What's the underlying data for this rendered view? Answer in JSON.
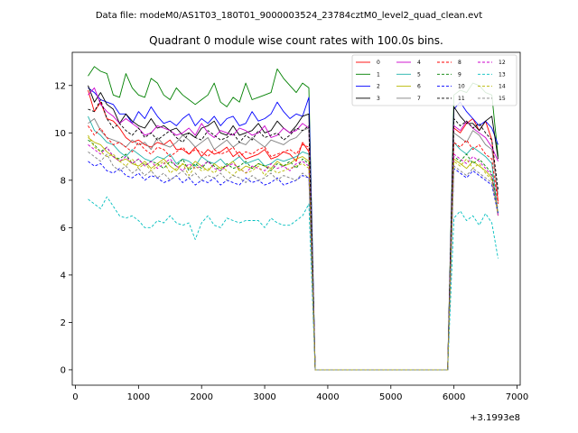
{
  "suptitle": "Data file: modeM0/AS1T03_180T01_9000003524_23784cztM0_level2_quad_clean.evt",
  "chart_data": {
    "type": "line",
    "title": "Quadrant 0 module wise count rates with 100.0s bins.",
    "xlabel": "",
    "ylabel": "",
    "x_offset_label": "+3.1993e8",
    "xlim": [
      -50,
      7050
    ],
    "ylim": [
      -0.65,
      13.4
    ],
    "x_ticks": [
      0,
      1000,
      2000,
      3000,
      4000,
      5000,
      6000,
      7000
    ],
    "y_ticks": [
      0,
      2,
      4,
      6,
      8,
      10,
      12
    ],
    "x": [
      200,
      300,
      400,
      500,
      600,
      700,
      800,
      900,
      1000,
      1100,
      1200,
      1300,
      1400,
      1500,
      1600,
      1700,
      1800,
      1900,
      2000,
      2100,
      2200,
      2300,
      2400,
      2500,
      2600,
      2700,
      2800,
      2900,
      3000,
      3100,
      3200,
      3300,
      3400,
      3500,
      3600,
      3700,
      3800,
      3900,
      4000,
      4100,
      4200,
      4300,
      4400,
      4500,
      4600,
      4700,
      4800,
      4900,
      5000,
      5100,
      5200,
      5300,
      5400,
      5500,
      5600,
      5700,
      5800,
      5900,
      6000,
      6100,
      6200,
      6300,
      6400,
      6500,
      6600,
      6700
    ],
    "legend_position": "upper right",
    "legend_columns": 4,
    "series": [
      {
        "name": "0",
        "color": "#ff0000",
        "dash": "solid",
        "values": [
          11.8,
          10.9,
          11.3,
          10.6,
          10.5,
          10.2,
          9.8,
          9.6,
          9.7,
          9.5,
          9.4,
          9.6,
          9.5,
          9.7,
          9.3,
          9.3,
          9.1,
          9.4,
          9.0,
          9.3,
          9.1,
          9.2,
          9.4,
          9.0,
          9.2,
          8.9,
          9.0,
          9.1,
          9.3,
          8.9,
          9.0,
          9.2,
          9.1,
          8.8,
          9.6,
          9.2,
          0,
          0,
          0,
          0,
          0,
          0,
          0,
          0,
          0,
          0,
          0,
          0,
          0,
          0,
          0,
          0,
          0,
          0,
          0,
          0,
          0,
          0,
          10.2,
          10.0,
          10.4,
          10.6,
          10.1,
          10.5,
          9.7,
          7.1
        ]
      },
      {
        "name": "1",
        "color": "#008000",
        "dash": "solid",
        "values": [
          12.4,
          12.8,
          12.6,
          12.5,
          11.6,
          11.5,
          12.5,
          11.9,
          11.6,
          11.5,
          12.3,
          12.1,
          11.6,
          11.4,
          11.9,
          11.6,
          11.4,
          11.2,
          11.4,
          11.6,
          12.1,
          11.3,
          11.1,
          11.5,
          11.3,
          12.1,
          11.4,
          11.5,
          11.6,
          11.7,
          12.7,
          12.3,
          12.0,
          11.7,
          12.1,
          11.9,
          0,
          0,
          0,
          0,
          0,
          0,
          0,
          0,
          0,
          0,
          0,
          0,
          0,
          0,
          0,
          0,
          0,
          0,
          0,
          0,
          0,
          0,
          11.6,
          11.8,
          11.7,
          12.1,
          12.0,
          11.7,
          11.6,
          9.0
        ]
      },
      {
        "name": "2",
        "color": "#0000ff",
        "dash": "solid",
        "values": [
          11.9,
          11.7,
          11.4,
          11.3,
          11.2,
          10.8,
          10.8,
          10.4,
          10.9,
          10.6,
          11.1,
          10.7,
          10.4,
          10.5,
          10.3,
          10.6,
          10.8,
          10.3,
          10.6,
          10.4,
          10.7,
          10.3,
          10.6,
          10.7,
          10.3,
          10.4,
          10.9,
          10.5,
          10.6,
          10.8,
          11.3,
          10.9,
          10.6,
          10.8,
          10.7,
          11.5,
          0,
          0,
          0,
          0,
          0,
          0,
          0,
          0,
          0,
          0,
          0,
          0,
          0,
          0,
          0,
          0,
          0,
          0,
          0,
          0,
          0,
          0,
          11.0,
          11.3,
          10.9,
          10.6,
          10.3,
          10.5,
          10.2,
          9.5
        ]
      },
      {
        "name": "3",
        "color": "#000000",
        "dash": "solid",
        "values": [
          12.0,
          11.3,
          11.7,
          11.2,
          11.0,
          10.4,
          10.8,
          10.5,
          10.3,
          10.2,
          10.6,
          10.2,
          10.3,
          10.1,
          10.2,
          9.9,
          10.0,
          9.8,
          10.2,
          10.3,
          10.5,
          10.0,
          9.9,
          10.3,
          9.9,
          10.0,
          10.1,
          10.4,
          10.0,
          10.1,
          10.5,
          10.2,
          10.0,
          10.3,
          10.7,
          10.8,
          0,
          0,
          0,
          0,
          0,
          0,
          0,
          0,
          0,
          0,
          0,
          0,
          0,
          0,
          0,
          0,
          0,
          0,
          0,
          0,
          0,
          0,
          11.1,
          10.7,
          10.4,
          10.4,
          10.1,
          10.5,
          10.7,
          8.9
        ]
      },
      {
        "name": "4",
        "color": "#cc00cc",
        "dash": "solid",
        "values": [
          11.6,
          11.9,
          11.2,
          10.9,
          10.7,
          10.4,
          10.6,
          10.4,
          10.2,
          9.9,
          10.0,
          10.3,
          10.2,
          10.1,
          9.9,
          10.0,
          10.2,
          9.9,
          10.4,
          10.0,
          9.8,
          10.1,
          10.0,
          9.9,
          10.2,
          10.1,
          9.9,
          10.0,
          10.3,
          9.8,
          9.9,
          10.2,
          10.0,
          10.1,
          10.4,
          10.2,
          0,
          0,
          0,
          0,
          0,
          0,
          0,
          0,
          0,
          0,
          0,
          0,
          0,
          0,
          0,
          0,
          0,
          0,
          0,
          0,
          0,
          0,
          10.3,
          10.1,
          10.5,
          10.2,
          10.0,
          9.8,
          9.4,
          8.8
        ]
      },
      {
        "name": "5",
        "color": "#20b2aa",
        "dash": "solid",
        "values": [
          10.7,
          10.1,
          9.9,
          9.6,
          9.5,
          9.2,
          9.0,
          9.3,
          9.1,
          8.9,
          8.8,
          9.0,
          8.9,
          9.1,
          8.7,
          8.9,
          8.8,
          8.6,
          9.0,
          8.8,
          8.7,
          8.9,
          8.6,
          8.8,
          9.0,
          8.7,
          8.8,
          8.9,
          8.6,
          8.7,
          8.9,
          8.8,
          8.9,
          9.0,
          9.2,
          9.1,
          0,
          0,
          0,
          0,
          0,
          0,
          0,
          0,
          0,
          0,
          0,
          0,
          0,
          0,
          0,
          0,
          0,
          0,
          0,
          0,
          0,
          0,
          9.6,
          9.3,
          9.1,
          9.4,
          9.2,
          9.0,
          8.7,
          6.6
        ]
      },
      {
        "name": "6",
        "color": "#b8b800",
        "dash": "solid",
        "values": [
          9.8,
          9.6,
          9.5,
          9.2,
          9.0,
          8.8,
          8.9,
          8.7,
          8.6,
          8.8,
          8.5,
          8.7,
          8.9,
          8.6,
          8.4,
          8.7,
          8.5,
          8.8,
          8.6,
          8.4,
          8.7,
          8.5,
          8.6,
          8.8,
          8.4,
          8.6,
          8.5,
          8.7,
          8.6,
          8.5,
          8.8,
          8.6,
          8.7,
          8.9,
          9.0,
          8.8,
          0,
          0,
          0,
          0,
          0,
          0,
          0,
          0,
          0,
          0,
          0,
          0,
          0,
          0,
          0,
          0,
          0,
          0,
          0,
          0,
          0,
          0,
          8.9,
          8.7,
          8.5,
          8.8,
          8.6,
          8.4,
          8.1,
          6.5
        ]
      },
      {
        "name": "7",
        "color": "#808080",
        "dash": "solid",
        "values": [
          10.4,
          10.6,
          10.1,
          9.8,
          9.7,
          9.6,
          9.4,
          9.7,
          9.5,
          9.6,
          9.3,
          9.8,
          9.5,
          9.4,
          9.6,
          9.9,
          9.7,
          9.4,
          9.6,
          9.8,
          9.3,
          9.5,
          9.7,
          9.4,
          9.6,
          9.5,
          9.8,
          9.6,
          9.4,
          9.7,
          9.6,
          9.5,
          9.7,
          9.8,
          10.1,
          10.2,
          0,
          0,
          0,
          0,
          0,
          0,
          0,
          0,
          0,
          0,
          0,
          0,
          0,
          0,
          0,
          0,
          0,
          0,
          0,
          0,
          0,
          0,
          10.0,
          9.8,
          9.6,
          10.1,
          9.9,
          9.5,
          9.3,
          7.4
        ]
      },
      {
        "name": "8",
        "color": "#ff0000",
        "dash": "dashed",
        "values": [
          10.3,
          9.9,
          10.2,
          9.8,
          9.5,
          9.6,
          9.4,
          9.2,
          9.6,
          9.3,
          9.1,
          9.4,
          9.3,
          9.0,
          9.2,
          9.4,
          9.1,
          9.3,
          9.2,
          9.0,
          9.3,
          9.1,
          9.2,
          9.4,
          9.0,
          9.2,
          9.1,
          9.3,
          9.4,
          9.0,
          9.1,
          9.2,
          9.3,
          9.1,
          9.5,
          9.4,
          0,
          0,
          0,
          0,
          0,
          0,
          0,
          0,
          0,
          0,
          0,
          0,
          0,
          0,
          0,
          0,
          0,
          0,
          0,
          0,
          0,
          0,
          9.6,
          9.4,
          9.7,
          9.3,
          9.5,
          9.1,
          8.9,
          7.0
        ]
      },
      {
        "name": "9",
        "color": "#008000",
        "dash": "dashed",
        "values": [
          9.7,
          9.5,
          9.2,
          9.4,
          9.0,
          8.9,
          9.1,
          8.7,
          8.9,
          8.6,
          8.8,
          8.7,
          8.5,
          8.8,
          8.6,
          8.9,
          8.4,
          8.7,
          8.5,
          8.8,
          8.6,
          8.4,
          8.7,
          8.5,
          8.6,
          8.8,
          8.5,
          8.7,
          8.6,
          8.4,
          8.7,
          8.6,
          8.8,
          8.5,
          8.9,
          8.7,
          0,
          0,
          0,
          0,
          0,
          0,
          0,
          0,
          0,
          0,
          0,
          0,
          0,
          0,
          0,
          0,
          0,
          0,
          0,
          0,
          0,
          0,
          9.0,
          8.8,
          9.1,
          8.7,
          8.9,
          8.6,
          8.3,
          6.6
        ]
      },
      {
        "name": "10",
        "color": "#0000ff",
        "dash": "dashed",
        "values": [
          8.8,
          8.6,
          8.7,
          8.4,
          8.3,
          8.5,
          8.2,
          8.1,
          8.3,
          8.0,
          8.2,
          8.1,
          7.9,
          8.0,
          8.2,
          7.9,
          8.1,
          7.8,
          8.0,
          7.9,
          8.1,
          7.8,
          8.0,
          7.9,
          7.8,
          8.1,
          7.9,
          8.0,
          7.8,
          7.9,
          8.1,
          7.8,
          7.9,
          8.0,
          8.2,
          8.1,
          0,
          0,
          0,
          0,
          0,
          0,
          0,
          0,
          0,
          0,
          0,
          0,
          0,
          0,
          0,
          0,
          0,
          0,
          0,
          0,
          0,
          0,
          8.5,
          8.3,
          8.1,
          8.4,
          8.2,
          8.0,
          7.8,
          6.6
        ]
      },
      {
        "name": "11",
        "color": "#000000",
        "dash": "dashed",
        "values": [
          11.0,
          10.9,
          11.4,
          10.6,
          10.2,
          10.4,
          10.1,
          9.9,
          10.2,
          9.8,
          10.0,
          9.7,
          9.9,
          10.1,
          9.8,
          9.6,
          10.0,
          9.8,
          9.7,
          10.1,
          9.9,
          9.7,
          9.8,
          10.0,
          9.6,
          9.9,
          9.7,
          10.1,
          9.8,
          9.9,
          10.0,
          9.7,
          9.9,
          10.2,
          10.1,
          10.3,
          0,
          0,
          0,
          0,
          0,
          0,
          0,
          0,
          0,
          0,
          0,
          0,
          0,
          0,
          0,
          0,
          0,
          0,
          0,
          0,
          0,
          0,
          10.6,
          10.3,
          10.5,
          10.2,
          10.4,
          10.0,
          9.7,
          7.6
        ]
      },
      {
        "name": "12",
        "color": "#cc00cc",
        "dash": "dashed",
        "values": [
          9.5,
          9.3,
          9.1,
          9.4,
          9.0,
          8.8,
          9.0,
          8.7,
          8.9,
          8.6,
          8.8,
          8.5,
          8.7,
          8.9,
          8.6,
          8.4,
          8.7,
          8.5,
          8.6,
          8.8,
          8.5,
          8.4,
          8.6,
          8.7,
          8.5,
          8.3,
          8.6,
          8.5,
          8.4,
          8.7,
          8.5,
          8.6,
          8.4,
          8.7,
          8.8,
          8.6,
          0,
          0,
          0,
          0,
          0,
          0,
          0,
          0,
          0,
          0,
          0,
          0,
          0,
          0,
          0,
          0,
          0,
          0,
          0,
          0,
          0,
          0,
          9.1,
          8.9,
          8.7,
          9.0,
          8.8,
          8.5,
          8.2,
          6.5
        ]
      },
      {
        "name": "13",
        "color": "#00bfbf",
        "dash": "dashed",
        "values": [
          7.2,
          7.0,
          6.8,
          7.3,
          6.9,
          6.5,
          6.4,
          6.5,
          6.3,
          6.0,
          6.0,
          6.3,
          6.2,
          6.5,
          6.2,
          6.1,
          6.2,
          5.5,
          6.2,
          6.5,
          6.1,
          6.0,
          6.4,
          6.3,
          6.2,
          6.3,
          6.3,
          6.3,
          6.0,
          6.4,
          6.2,
          6.1,
          6.1,
          6.3,
          6.5,
          7.0,
          0,
          0,
          0,
          0,
          0,
          0,
          0,
          0,
          0,
          0,
          0,
          0,
          0,
          0,
          0,
          0,
          0,
          0,
          0,
          0,
          0,
          0,
          6.4,
          6.7,
          6.3,
          6.5,
          6.1,
          6.6,
          6.2,
          4.7
        ]
      },
      {
        "name": "14",
        "color": "#b8b800",
        "dash": "dashed",
        "values": [
          9.9,
          9.4,
          9.2,
          9.0,
          9.1,
          8.8,
          8.6,
          8.9,
          8.5,
          8.7,
          8.4,
          8.6,
          8.8,
          8.3,
          8.5,
          8.7,
          8.2,
          8.6,
          8.4,
          8.5,
          8.3,
          8.6,
          8.4,
          8.2,
          8.5,
          8.3,
          8.4,
          8.6,
          8.2,
          8.5,
          8.3,
          8.4,
          8.5,
          8.6,
          8.7,
          8.5,
          0,
          0,
          0,
          0,
          0,
          0,
          0,
          0,
          0,
          0,
          0,
          0,
          0,
          0,
          0,
          0,
          0,
          0,
          0,
          0,
          0,
          0,
          8.8,
          8.6,
          8.9,
          8.5,
          8.7,
          8.3,
          8.0,
          6.6
        ]
      },
      {
        "name": "15",
        "color": "#808080",
        "dash": "dashed",
        "values": [
          9.2,
          9.0,
          8.8,
          9.1,
          8.6,
          8.4,
          8.6,
          8.3,
          8.5,
          8.2,
          8.4,
          8.1,
          8.3,
          8.0,
          8.2,
          8.4,
          8.1,
          8.3,
          8.0,
          8.2,
          8.1,
          8.3,
          8.0,
          8.2,
          8.1,
          7.9,
          8.2,
          8.0,
          8.1,
          8.3,
          8.0,
          8.2,
          8.1,
          8.0,
          8.3,
          8.1,
          0,
          0,
          0,
          0,
          0,
          0,
          0,
          0,
          0,
          0,
          0,
          0,
          0,
          0,
          0,
          0,
          0,
          0,
          0,
          0,
          0,
          0,
          8.6,
          8.4,
          8.2,
          8.5,
          8.3,
          8.1,
          7.9,
          6.8
        ]
      }
    ]
  }
}
